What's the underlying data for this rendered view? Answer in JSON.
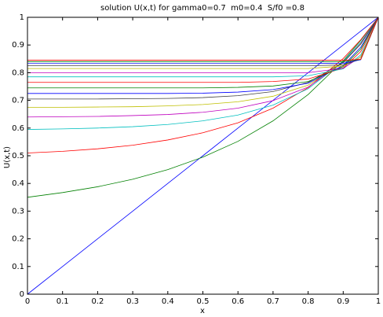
{
  "chart_data": {
    "type": "line",
    "title": "solution U(x,t) for gamma0=0.7  m0=0.4  S/f0 =0.8",
    "x_label": "x",
    "y_label": "U(x,t)",
    "x": [
      0,
      0.1,
      0.2,
      0.3,
      0.4,
      0.5,
      0.6,
      0.7,
      0.8,
      0.9,
      0.95,
      1
    ],
    "xlim": [
      0,
      1
    ],
    "ylim": [
      0,
      1
    ],
    "xticks": [
      0,
      0.1,
      0.2,
      0.3,
      0.4,
      0.5,
      0.6,
      0.7,
      0.8,
      0.9,
      1
    ],
    "yticks": [
      0,
      0.1,
      0.2,
      0.3,
      0.4,
      0.5,
      0.6,
      0.7,
      0.8,
      0.9,
      1
    ],
    "series": [
      {
        "color": "#0000ff",
        "values": [
          0,
          0.1,
          0.2,
          0.3,
          0.4,
          0.5,
          0.6,
          0.7,
          0.8,
          0.9,
          0.95,
          1
        ]
      },
      {
        "color": "#008000",
        "values": [
          0.35,
          0.367,
          0.388,
          0.415,
          0.45,
          0.495,
          0.552,
          0.626,
          0.721,
          0.843,
          0.917,
          1
        ]
      },
      {
        "color": "#ff0000",
        "values": [
          0.51,
          0.516,
          0.525,
          0.538,
          0.557,
          0.583,
          0.619,
          0.672,
          0.746,
          0.851,
          0.919,
          1
        ]
      },
      {
        "color": "#00bfbf",
        "values": [
          0.595,
          0.597,
          0.6,
          0.605,
          0.613,
          0.626,
          0.647,
          0.683,
          0.742,
          0.84,
          0.91,
          1
        ]
      },
      {
        "color": "#bf00bf",
        "values": [
          0.64,
          0.641,
          0.642,
          0.645,
          0.649,
          0.657,
          0.672,
          0.699,
          0.748,
          0.837,
          0.906,
          1
        ]
      },
      {
        "color": "#bfbf00",
        "values": [
          0.675,
          0.675,
          0.676,
          0.677,
          0.68,
          0.685,
          0.695,
          0.715,
          0.755,
          0.836,
          0.904,
          1
        ]
      },
      {
        "color": "#404040",
        "values": [
          0.705,
          0.705,
          0.705,
          0.706,
          0.707,
          0.71,
          0.717,
          0.732,
          0.765,
          0.837,
          0.903,
          1
        ]
      },
      {
        "color": "#0000ff",
        "values": [
          0.725,
          0.725,
          0.725,
          0.725,
          0.725,
          0.726,
          0.73,
          0.739,
          0.762,
          0.826,
          0.892,
          1
        ]
      },
      {
        "color": "#008000",
        "values": [
          0.745,
          0.745,
          0.745,
          0.745,
          0.745,
          0.745,
          0.747,
          0.752,
          0.768,
          0.822,
          0.885,
          1
        ]
      },
      {
        "color": "#ff0000",
        "values": [
          0.765,
          0.765,
          0.765,
          0.765,
          0.765,
          0.765,
          0.765,
          0.768,
          0.777,
          0.817,
          0.876,
          1
        ]
      },
      {
        "color": "#00bfbf",
        "values": [
          0.785,
          0.785,
          0.785,
          0.785,
          0.785,
          0.785,
          0.785,
          0.785,
          0.789,
          0.814,
          0.864,
          1
        ]
      },
      {
        "color": "#bf00bf",
        "values": [
          0.8,
          0.8,
          0.8,
          0.8,
          0.8,
          0.8,
          0.8,
          0.8,
          0.8,
          0.816,
          0.857,
          1
        ]
      },
      {
        "color": "#bfbf00",
        "values": [
          0.815,
          0.815,
          0.815,
          0.815,
          0.815,
          0.815,
          0.815,
          0.815,
          0.815,
          0.824,
          0.856,
          1
        ]
      },
      {
        "color": "#404040",
        "values": [
          0.825,
          0.825,
          0.825,
          0.825,
          0.825,
          0.825,
          0.825,
          0.825,
          0.825,
          0.828,
          0.849,
          1
        ]
      },
      {
        "color": "#0000ff",
        "values": [
          0.833,
          0.833,
          0.833,
          0.833,
          0.833,
          0.833,
          0.833,
          0.833,
          0.833,
          0.834,
          0.847,
          1
        ]
      },
      {
        "color": "#008000",
        "values": [
          0.84,
          0.84,
          0.84,
          0.84,
          0.84,
          0.84,
          0.84,
          0.84,
          0.84,
          0.84,
          0.848,
          1
        ]
      },
      {
        "color": "#ff0000",
        "values": [
          0.845,
          0.845,
          0.845,
          0.845,
          0.845,
          0.845,
          0.845,
          0.845,
          0.845,
          0.845,
          0.848,
          1
        ]
      }
    ]
  }
}
